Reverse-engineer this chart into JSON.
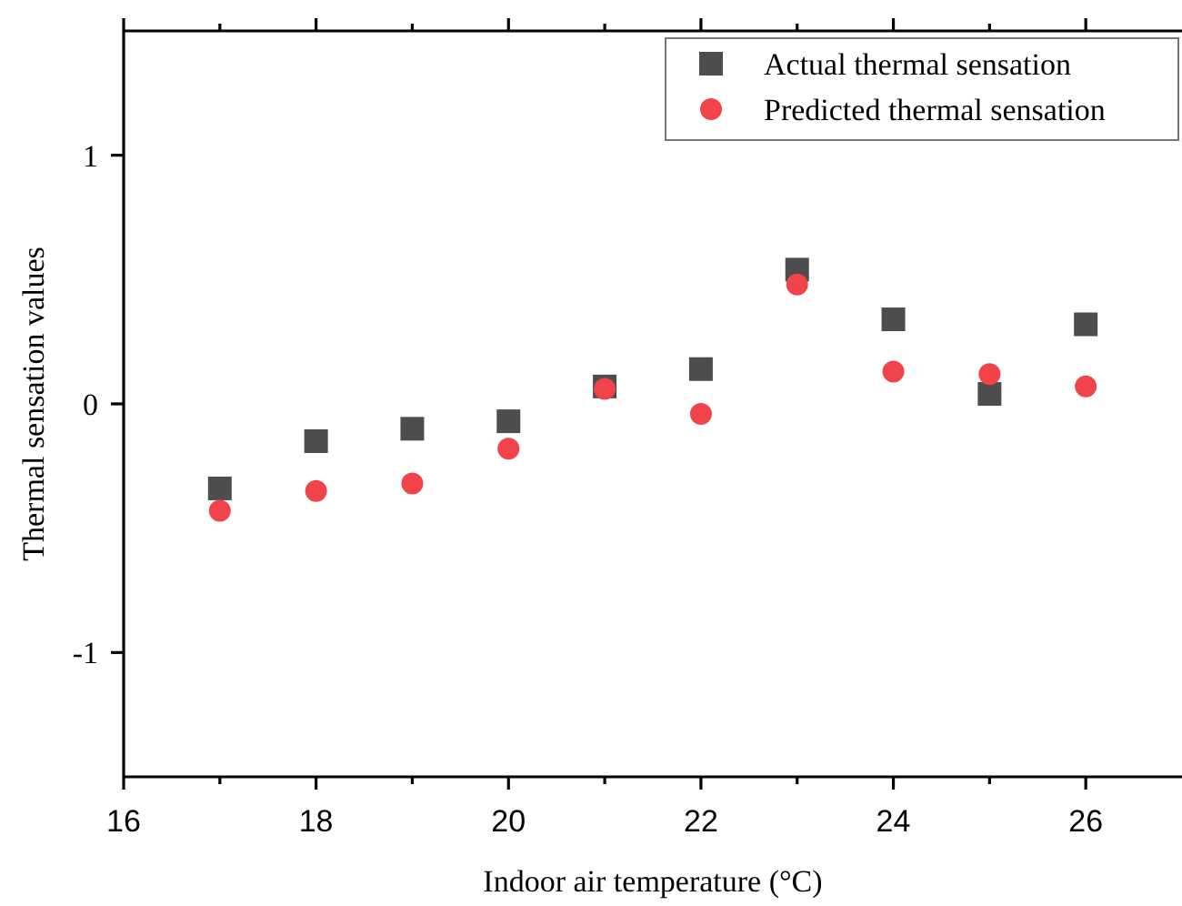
{
  "chart_data": {
    "type": "scatter",
    "xlabel": "Indoor air temperature (°C)",
    "ylabel": "Thermal sensation values",
    "x": [
      17,
      18,
      19,
      20,
      21,
      22,
      23,
      24,
      25,
      26
    ],
    "series": [
      {
        "name": "Actual thermal sensation",
        "color": "#4d4d4d",
        "marker": "square",
        "values": [
          -0.34,
          -0.15,
          -0.1,
          -0.07,
          0.07,
          0.14,
          0.54,
          0.34,
          0.04,
          0.32
        ]
      },
      {
        "name": "Predicted thermal sensation",
        "color": "#f0444a",
        "marker": "circle",
        "values": [
          -0.43,
          -0.35,
          -0.32,
          -0.18,
          0.06,
          -0.04,
          0.48,
          0.13,
          0.12,
          0.07
        ]
      }
    ],
    "xlim": [
      16,
      27
    ],
    "xticks": [
      16,
      {
        "value": 17,
        "label": null
      },
      18,
      {
        "value": 19,
        "label": null
      },
      20,
      {
        "value": 21,
        "label": null
      },
      22,
      {
        "value": 23,
        "label": null
      },
      24,
      {
        "value": 25,
        "label": null
      },
      26
    ],
    "ylim": [
      -1.5,
      1.5
    ],
    "yticks": [
      -1,
      0,
      1
    ],
    "grid": false,
    "legend": "top right"
  }
}
